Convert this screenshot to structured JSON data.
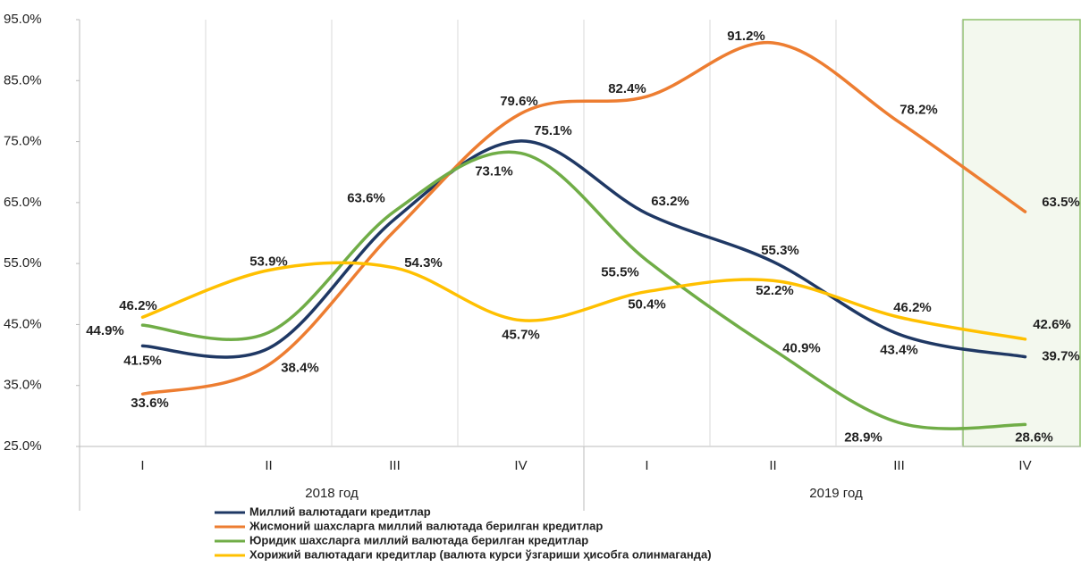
{
  "chart_data": {
    "type": "line",
    "categories": [
      "I",
      "II",
      "III",
      "IV",
      "I",
      "II",
      "III",
      "IV"
    ],
    "groups": [
      {
        "label": "2018 год"
      },
      {
        "label": "2019 год"
      }
    ],
    "ylim": [
      25,
      95
    ],
    "yticks": [
      {
        "value": 25,
        "label": "25.0%"
      },
      {
        "value": 35,
        "label": "35.0%"
      },
      {
        "value": 45,
        "label": "45.0%"
      },
      {
        "value": 55,
        "label": "55.0%"
      },
      {
        "value": 65,
        "label": "65.0%"
      },
      {
        "value": 75,
        "label": "75.0%"
      },
      {
        "value": 85,
        "label": "85.0%"
      },
      {
        "value": 95,
        "label": "95.0%"
      }
    ],
    "grid": true,
    "legend": "bottom-left",
    "smooth": true,
    "series": [
      {
        "name": "Миллий валютадаги кредитлар",
        "color": "#1f3864",
        "values": [
          41.5,
          41.1,
          62.3,
          75.1,
          63.2,
          55.3,
          43.4,
          39.7
        ],
        "value_labels": [
          "41.5%",
          null,
          null,
          "75.1%",
          "63.2%",
          "55.3%",
          "43.4%",
          "39.7%"
        ]
      },
      {
        "name": "Жисмоний шахсларга миллий валютада берилган кредитлар",
        "color": "#ed7d31",
        "values": [
          33.6,
          38.4,
          60.4,
          79.6,
          82.4,
          91.2,
          78.2,
          63.5
        ],
        "value_labels": [
          "33.6%",
          "38.4%",
          null,
          "79.6%",
          "82.4%",
          "91.2%",
          "78.2%",
          "63.5%"
        ]
      },
      {
        "name": "Юридик шахсларга миллий валютада берилган кредитлар",
        "color": "#70ad47",
        "values": [
          44.9,
          43.7,
          63.6,
          73.1,
          55.5,
          40.9,
          28.9,
          28.6
        ],
        "value_labels": [
          "44.9%",
          null,
          "63.6%",
          "73.1%",
          "55.5%",
          "40.9%",
          "28.9%",
          "28.6%"
        ]
      },
      {
        "name": "Хорижий валютадаги кредитлар (валюта курси ўзгариши ҳисобга олинмаганда)",
        "color": "#ffc000",
        "values": [
          46.2,
          53.9,
          54.3,
          45.7,
          50.4,
          52.2,
          46.2,
          42.6
        ],
        "value_labels": [
          "46.2%",
          "53.9%",
          "54.3%",
          "45.7%",
          "50.4%",
          "52.2%",
          "46.2%",
          "42.6%"
        ]
      }
    ]
  }
}
